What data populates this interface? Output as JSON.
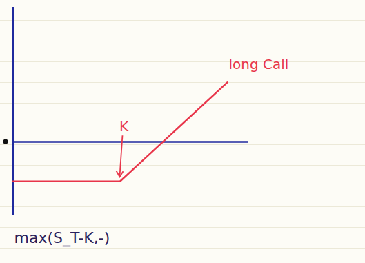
{
  "chart_data": {
    "type": "line",
    "x": [
      0,
      5,
      10
    ],
    "series": [
      {
        "name": "long Call",
        "color": "#e8354a",
        "values": [
          -2,
          -2,
          3
        ]
      }
    ],
    "xlim": [
      0,
      11
    ],
    "ylim": [
      -3.7,
      6.8
    ],
    "tick_labels": false,
    "annotations": [
      {
        "text": "K",
        "x": 5,
        "y": -2
      }
    ],
    "caption": "max(S_T-K,-)"
  }
}
